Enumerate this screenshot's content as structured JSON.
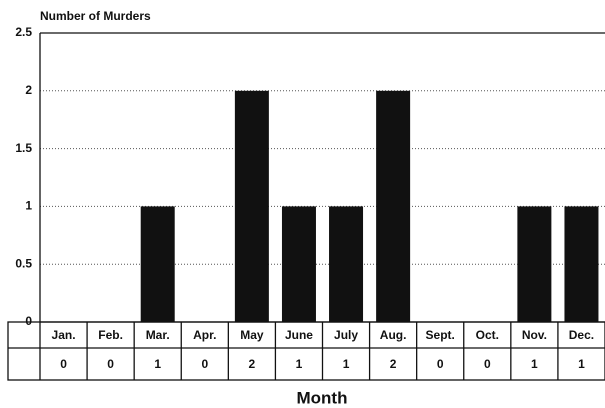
{
  "chart_data": {
    "type": "bar",
    "ylabel": "Number of Murders",
    "xlabel": "Month",
    "categories": [
      "Jan.",
      "Feb.",
      "Mar.",
      "Apr.",
      "May",
      "June",
      "July",
      "Aug.",
      "Sept.",
      "Oct.",
      "Nov.",
      "Dec."
    ],
    "values": [
      0,
      0,
      1,
      0,
      2,
      1,
      1,
      2,
      0,
      0,
      1,
      1
    ],
    "color": "#111111",
    "ylim": [
      0,
      2.5
    ],
    "yticks": [
      0,
      0.5,
      1,
      1.5,
      2,
      2.5
    ],
    "grid": true
  }
}
